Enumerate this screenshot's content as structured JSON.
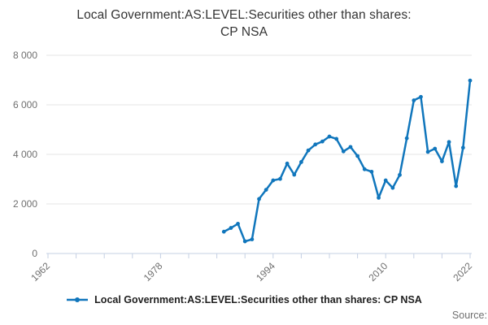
{
  "title": {
    "line1": "Local Government:AS:LEVEL:Securities other than shares:",
    "line2": "CP NSA"
  },
  "legend": {
    "label": "Local Government:AS:LEVEL:Securities other than shares: CP NSA"
  },
  "source": {
    "label": "Source:"
  },
  "colors": {
    "line": "#1076bc",
    "grid": "#e6e6e6",
    "axis": "#c4d0e3",
    "tick_label": "#6f6f6f",
    "title_text": "#333333"
  },
  "chart_data": {
    "type": "line",
    "title": "Local Government:AS:LEVEL:Securities other than shares: CP NSA",
    "series_name": "Local Government:AS:LEVEL:Securities other than shares: CP NSA",
    "x": [
      1987,
      1988,
      1989,
      1990,
      1991,
      1992,
      1993,
      1994,
      1995,
      1996,
      1997,
      1998,
      1999,
      2000,
      2001,
      2002,
      2003,
      2004,
      2005,
      2006,
      2007,
      2008,
      2009,
      2010,
      2011,
      2012,
      2013,
      2014,
      2015,
      2016,
      2017,
      2018,
      2019,
      2020,
      2021,
      2022
    ],
    "values": [
      880,
      1030,
      1200,
      490,
      570,
      2200,
      2570,
      2950,
      3010,
      3630,
      3180,
      3690,
      4160,
      4400,
      4520,
      4720,
      4625,
      4120,
      4300,
      3935,
      3400,
      3300,
      2250,
      2950,
      2650,
      3170,
      4650,
      6180,
      6320,
      4100,
      4230,
      3720,
      4500,
      2720,
      4270,
      6980
    ],
    "xlabel": "",
    "ylabel": "",
    "xlim": [
      1962,
      2022
    ],
    "ylim": [
      0,
      8000
    ],
    "y_ticks": [
      0,
      2000,
      4000,
      6000,
      8000
    ],
    "y_tick_labels": [
      "0",
      "2 000",
      "4 000",
      "6 000",
      "8 000"
    ],
    "x_tick_step": 4,
    "x_label_years": [
      1962,
      1978,
      1994,
      2010,
      2022
    ],
    "grid": true,
    "markers": true,
    "legend_position": "bottom"
  }
}
